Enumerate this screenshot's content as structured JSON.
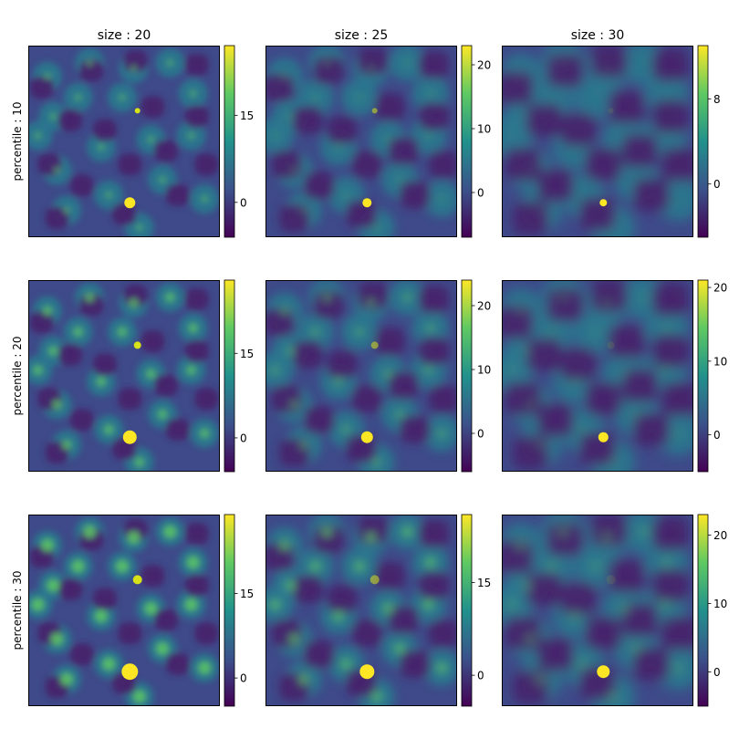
{
  "chart_data": {
    "type": "heatmap",
    "colormap": "viridis",
    "colors": [
      "#440154",
      "#3b528b",
      "#21918c",
      "#5ec962",
      "#fde725"
    ],
    "column_titles": [
      "size : 20",
      "size : 25",
      "size : 30"
    ],
    "row_labels": [
      "percentile : 10",
      "percentile : 20",
      "percentile : 30"
    ],
    "panels": [
      {
        "row": 0,
        "col": 0,
        "vmin": -6,
        "vmax": 27,
        "colorbar_ticks": [
          0,
          15
        ],
        "hotspot_peak": 27
      },
      {
        "row": 0,
        "col": 1,
        "vmin": -7,
        "vmax": 23,
        "colorbar_ticks": [
          0,
          10,
          20
        ],
        "hotspot_peak": 23
      },
      {
        "row": 0,
        "col": 2,
        "vmin": -5,
        "vmax": 13,
        "colorbar_ticks": [
          0,
          8
        ],
        "hotspot_peak": 13
      },
      {
        "row": 1,
        "col": 0,
        "vmin": -6,
        "vmax": 28,
        "colorbar_ticks": [
          0,
          15
        ],
        "hotspot_peak": 28
      },
      {
        "row": 1,
        "col": 1,
        "vmin": -6,
        "vmax": 24,
        "colorbar_ticks": [
          0,
          10,
          20
        ],
        "hotspot_peak": 24
      },
      {
        "row": 1,
        "col": 2,
        "vmin": -5,
        "vmax": 21,
        "colorbar_ticks": [
          0,
          10,
          20
        ],
        "hotspot_peak": 21
      },
      {
        "row": 2,
        "col": 0,
        "vmin": -5,
        "vmax": 29,
        "colorbar_ticks": [
          0,
          15
        ],
        "hotspot_peak": 29
      },
      {
        "row": 2,
        "col": 1,
        "vmin": -5,
        "vmax": 26,
        "colorbar_ticks": [
          0,
          15
        ],
        "hotspot_peak": 26
      },
      {
        "row": 2,
        "col": 2,
        "vmin": -5,
        "vmax": 23,
        "colorbar_ticks": [
          0,
          10,
          20
        ],
        "hotspot_peak": 23
      }
    ]
  }
}
